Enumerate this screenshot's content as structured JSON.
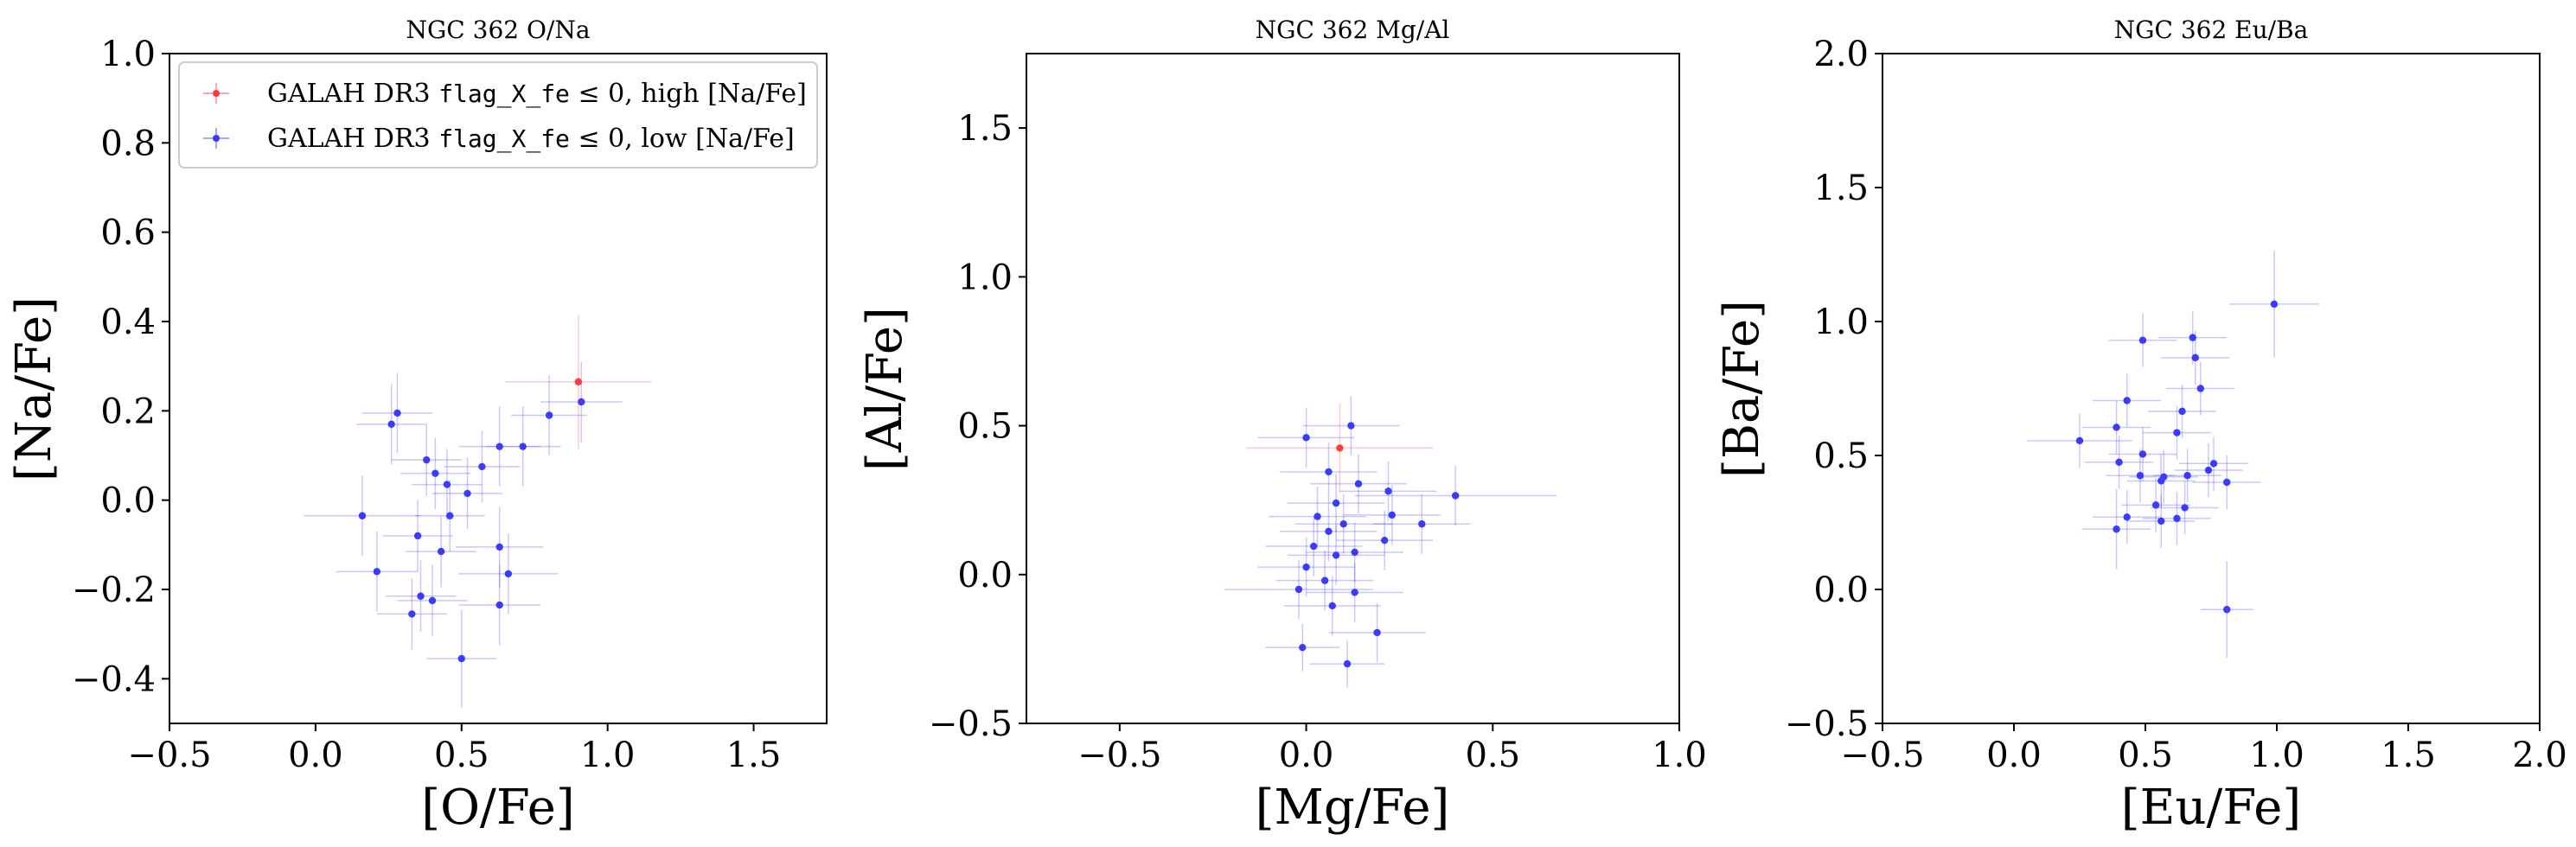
{
  "chart_data": [
    {
      "type": "scatter",
      "title": "NGC 362 O/Na",
      "xlabel": "[O/Fe]",
      "ylabel": "[Na/Fe]",
      "xlim": [
        -0.5,
        1.75
      ],
      "ylim": [
        -0.5,
        1.0
      ],
      "xticks": [
        -0.5,
        0.0,
        0.5,
        1.0,
        1.5
      ],
      "xtick_labels": [
        "−0.5",
        "0.0",
        "0.5",
        "1.0",
        "1.5"
      ],
      "yticks": [
        -0.4,
        -0.2,
        0.0,
        0.2,
        0.4,
        0.6,
        0.8,
        1.0
      ],
      "ytick_labels": [
        "−0.4",
        "−0.2",
        "0.0",
        "0.2",
        "0.4",
        "0.6",
        "0.8",
        "1.0"
      ],
      "legend": {
        "placement": "top-left",
        "entries": [
          {
            "prefix": "GALAH DR3 ",
            "mono": "flag_X_fe",
            "suffix": " ≤ 0, high [Na/Fe]",
            "color": "#ff3b3b"
          },
          {
            "prefix": "GALAH DR3 ",
            "mono": "flag_X_fe",
            "suffix": " ≤ 0, low [Na/Fe]",
            "color": "#3b3bff"
          }
        ]
      },
      "series": [
        {
          "name": "high [Na/Fe]",
          "color": "#ff3b3b",
          "points": [
            {
              "x": 0.9,
              "y": 0.265,
              "xerr": 0.25,
              "yerr": 0.15
            }
          ]
        },
        {
          "name": "low [Na/Fe]",
          "color": "#3b3bff",
          "points": [
            {
              "x": 0.91,
              "y": 0.22,
              "xerr": 0.14,
              "yerr": 0.09
            },
            {
              "x": 0.8,
              "y": 0.19,
              "xerr": 0.13,
              "yerr": 0.09
            },
            {
              "x": 0.28,
              "y": 0.195,
              "xerr": 0.12,
              "yerr": 0.09
            },
            {
              "x": 0.26,
              "y": 0.17,
              "xerr": 0.12,
              "yerr": 0.09
            },
            {
              "x": 0.63,
              "y": 0.12,
              "xerr": 0.14,
              "yerr": 0.09
            },
            {
              "x": 0.71,
              "y": 0.12,
              "xerr": 0.13,
              "yerr": 0.09
            },
            {
              "x": 0.38,
              "y": 0.09,
              "xerr": 0.12,
              "yerr": 0.08
            },
            {
              "x": 0.57,
              "y": 0.075,
              "xerr": 0.13,
              "yerr": 0.08
            },
            {
              "x": 0.41,
              "y": 0.06,
              "xerr": 0.12,
              "yerr": 0.08
            },
            {
              "x": 0.45,
              "y": 0.035,
              "xerr": 0.12,
              "yerr": 0.08
            },
            {
              "x": 0.52,
              "y": 0.015,
              "xerr": 0.12,
              "yerr": 0.08
            },
            {
              "x": 0.16,
              "y": -0.035,
              "xerr": 0.2,
              "yerr": 0.09
            },
            {
              "x": 0.46,
              "y": -0.035,
              "xerr": 0.12,
              "yerr": 0.08
            },
            {
              "x": 0.35,
              "y": -0.08,
              "xerr": 0.12,
              "yerr": 0.08
            },
            {
              "x": 0.63,
              "y": -0.105,
              "xerr": 0.15,
              "yerr": 0.09
            },
            {
              "x": 0.43,
              "y": -0.115,
              "xerr": 0.12,
              "yerr": 0.08
            },
            {
              "x": 0.21,
              "y": -0.16,
              "xerr": 0.14,
              "yerr": 0.09
            },
            {
              "x": 0.66,
              "y": -0.165,
              "xerr": 0.17,
              "yerr": 0.09
            },
            {
              "x": 0.36,
              "y": -0.215,
              "xerr": 0.12,
              "yerr": 0.08
            },
            {
              "x": 0.4,
              "y": -0.225,
              "xerr": 0.12,
              "yerr": 0.08
            },
            {
              "x": 0.63,
              "y": -0.235,
              "xerr": 0.14,
              "yerr": 0.09
            },
            {
              "x": 0.33,
              "y": -0.255,
              "xerr": 0.12,
              "yerr": 0.08
            },
            {
              "x": 0.5,
              "y": -0.355,
              "xerr": 0.12,
              "yerr": 0.11
            }
          ]
        }
      ]
    },
    {
      "type": "scatter",
      "title": "NGC 362 Mg/Al",
      "xlabel": "[Mg/Fe]",
      "ylabel": "[Al/Fe]",
      "xlim": [
        -0.75,
        1.0
      ],
      "ylim": [
        -0.5,
        1.75
      ],
      "xticks": [
        -0.5,
        0.0,
        0.5,
        1.0
      ],
      "xtick_labels": [
        "−0.5",
        "0.0",
        "0.5",
        "1.0"
      ],
      "yticks": [
        -0.5,
        0.0,
        0.5,
        1.0,
        1.5
      ],
      "ytick_labels": [
        "−0.5",
        "0.0",
        "0.5",
        "1.0",
        "1.5"
      ],
      "series": [
        {
          "name": "high [Na/Fe]",
          "color": "#ff3b3b",
          "points": [
            {
              "x": 0.09,
              "y": 0.425,
              "xerr": 0.25,
              "yerr": 0.15
            }
          ]
        },
        {
          "name": "low [Na/Fe]",
          "color": "#3b3bff",
          "points": [
            {
              "x": 0.0,
              "y": 0.46,
              "xerr": 0.13,
              "yerr": 0.1
            },
            {
              "x": 0.12,
              "y": 0.5,
              "xerr": 0.13,
              "yerr": 0.1
            },
            {
              "x": 0.06,
              "y": 0.345,
              "xerr": 0.13,
              "yerr": 0.1
            },
            {
              "x": 0.14,
              "y": 0.305,
              "xerr": 0.13,
              "yerr": 0.1
            },
            {
              "x": 0.22,
              "y": 0.28,
              "xerr": 0.13,
              "yerr": 0.1
            },
            {
              "x": 0.4,
              "y": 0.265,
              "xerr": 0.27,
              "yerr": 0.1
            },
            {
              "x": 0.08,
              "y": 0.24,
              "xerr": 0.13,
              "yerr": 0.1
            },
            {
              "x": 0.03,
              "y": 0.195,
              "xerr": 0.13,
              "yerr": 0.1
            },
            {
              "x": 0.23,
              "y": 0.2,
              "xerr": 0.13,
              "yerr": 0.1
            },
            {
              "x": 0.1,
              "y": 0.17,
              "xerr": 0.13,
              "yerr": 0.1
            },
            {
              "x": 0.31,
              "y": 0.17,
              "xerr": 0.13,
              "yerr": 0.1
            },
            {
              "x": 0.06,
              "y": 0.145,
              "xerr": 0.13,
              "yerr": 0.1
            },
            {
              "x": 0.21,
              "y": 0.115,
              "xerr": 0.13,
              "yerr": 0.1
            },
            {
              "x": 0.02,
              "y": 0.095,
              "xerr": 0.13,
              "yerr": 0.1
            },
            {
              "x": 0.13,
              "y": 0.075,
              "xerr": 0.13,
              "yerr": 0.1
            },
            {
              "x": 0.08,
              "y": 0.065,
              "xerr": 0.13,
              "yerr": 0.1
            },
            {
              "x": 0.0,
              "y": 0.025,
              "xerr": 0.13,
              "yerr": 0.1
            },
            {
              "x": 0.05,
              "y": -0.02,
              "xerr": 0.13,
              "yerr": 0.1
            },
            {
              "x": -0.02,
              "y": -0.05,
              "xerr": 0.2,
              "yerr": 0.1
            },
            {
              "x": 0.13,
              "y": -0.06,
              "xerr": 0.13,
              "yerr": 0.1
            },
            {
              "x": 0.07,
              "y": -0.105,
              "xerr": 0.13,
              "yerr": 0.1
            },
            {
              "x": 0.19,
              "y": -0.195,
              "xerr": 0.13,
              "yerr": 0.1
            },
            {
              "x": -0.01,
              "y": -0.245,
              "xerr": 0.1,
              "yerr": 0.08
            },
            {
              "x": 0.11,
              "y": -0.3,
              "xerr": 0.1,
              "yerr": 0.08
            }
          ]
        }
      ]
    },
    {
      "type": "scatter",
      "title": "NGC 362 Eu/Ba",
      "xlabel": "[Eu/Fe]",
      "ylabel": "[Ba/Fe]",
      "xlim": [
        -0.5,
        2.0
      ],
      "ylim": [
        -0.5,
        2.0
      ],
      "xticks": [
        -0.5,
        0.0,
        0.5,
        1.0,
        1.5,
        2.0
      ],
      "xtick_labels": [
        "−0.5",
        "0.0",
        "0.5",
        "1.0",
        "1.5",
        "2.0"
      ],
      "yticks": [
        -0.5,
        0.0,
        0.5,
        1.0,
        1.5,
        2.0
      ],
      "ytick_labels": [
        "−0.5",
        "0.0",
        "0.5",
        "1.0",
        "1.5",
        "2.0"
      ],
      "series": [
        {
          "name": "low [Na/Fe]",
          "color": "#3b3bff",
          "points": [
            {
              "x": 0.99,
              "y": 1.065,
              "xerr": 0.17,
              "yerr": 0.2
            },
            {
              "x": 0.68,
              "y": 0.94,
              "xerr": 0.13,
              "yerr": 0.1
            },
            {
              "x": 0.49,
              "y": 0.93,
              "xerr": 0.13,
              "yerr": 0.1
            },
            {
              "x": 0.69,
              "y": 0.865,
              "xerr": 0.13,
              "yerr": 0.1
            },
            {
              "x": 0.71,
              "y": 0.75,
              "xerr": 0.13,
              "yerr": 0.1
            },
            {
              "x": 0.43,
              "y": 0.705,
              "xerr": 0.13,
              "yerr": 0.1
            },
            {
              "x": 0.64,
              "y": 0.665,
              "xerr": 0.13,
              "yerr": 0.1
            },
            {
              "x": 0.39,
              "y": 0.605,
              "xerr": 0.13,
              "yerr": 0.1
            },
            {
              "x": 0.62,
              "y": 0.585,
              "xerr": 0.13,
              "yerr": 0.1
            },
            {
              "x": 0.25,
              "y": 0.555,
              "xerr": 0.2,
              "yerr": 0.1
            },
            {
              "x": 0.49,
              "y": 0.505,
              "xerr": 0.13,
              "yerr": 0.1
            },
            {
              "x": 0.4,
              "y": 0.475,
              "xerr": 0.13,
              "yerr": 0.1
            },
            {
              "x": 0.76,
              "y": 0.47,
              "xerr": 0.13,
              "yerr": 0.1
            },
            {
              "x": 0.74,
              "y": 0.445,
              "xerr": 0.13,
              "yerr": 0.1
            },
            {
              "x": 0.48,
              "y": 0.425,
              "xerr": 0.13,
              "yerr": 0.1
            },
            {
              "x": 0.66,
              "y": 0.425,
              "xerr": 0.13,
              "yerr": 0.1
            },
            {
              "x": 0.57,
              "y": 0.42,
              "xerr": 0.13,
              "yerr": 0.1
            },
            {
              "x": 0.56,
              "y": 0.405,
              "xerr": 0.13,
              "yerr": 0.1
            },
            {
              "x": 0.81,
              "y": 0.4,
              "xerr": 0.13,
              "yerr": 0.1
            },
            {
              "x": 0.54,
              "y": 0.315,
              "xerr": 0.13,
              "yerr": 0.1
            },
            {
              "x": 0.65,
              "y": 0.305,
              "xerr": 0.13,
              "yerr": 0.1
            },
            {
              "x": 0.43,
              "y": 0.27,
              "xerr": 0.13,
              "yerr": 0.1
            },
            {
              "x": 0.62,
              "y": 0.265,
              "xerr": 0.13,
              "yerr": 0.1
            },
            {
              "x": 0.56,
              "y": 0.255,
              "xerr": 0.13,
              "yerr": 0.1
            },
            {
              "x": 0.39,
              "y": 0.225,
              "xerr": 0.13,
              "yerr": 0.15
            },
            {
              "x": 0.81,
              "y": -0.075,
              "xerr": 0.1,
              "yerr": 0.18
            }
          ]
        }
      ]
    }
  ]
}
